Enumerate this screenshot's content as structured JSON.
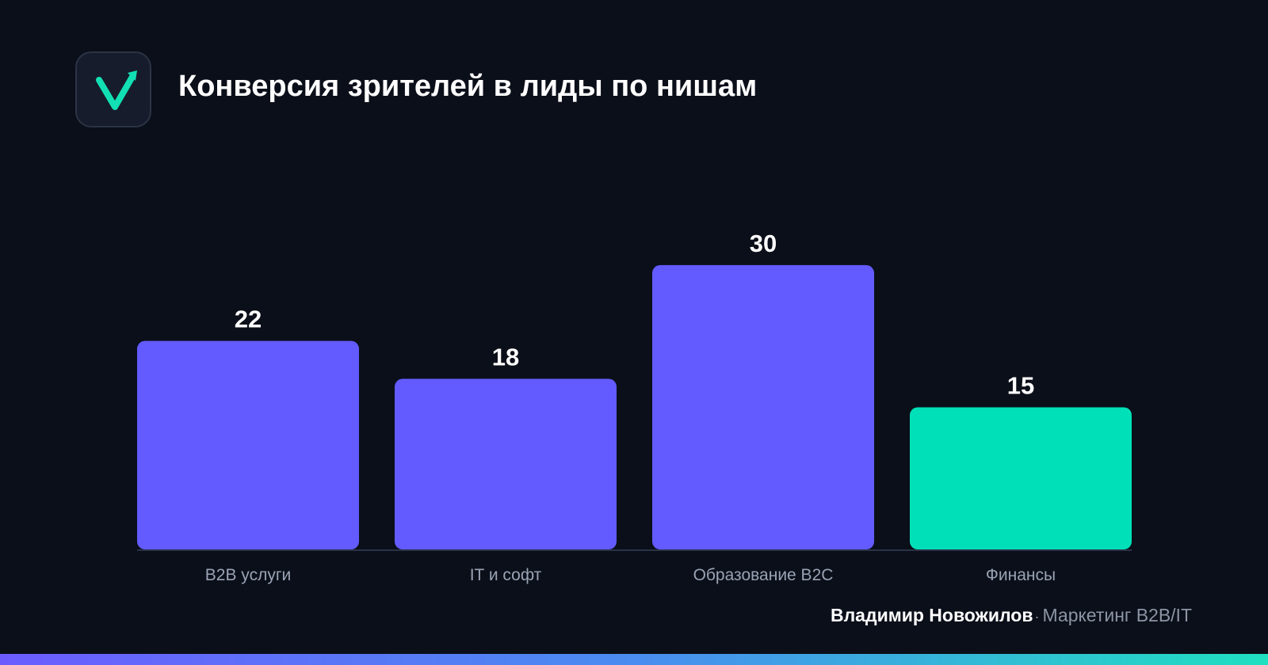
{
  "header": {
    "title": "Конверсия зрителей в лиды по нишам",
    "logo_icon": "checkmark-arrow-icon"
  },
  "chart_data": {
    "type": "bar",
    "title": "Конверсия зрителей в лиды по нишам",
    "categories": [
      "B2B услуги",
      "IT и софт",
      "Образование B2C",
      "Финансы"
    ],
    "values": [
      22,
      18,
      30,
      15
    ],
    "value_labels": [
      "22",
      "18",
      "30",
      "15"
    ],
    "colors": [
      "#635bff",
      "#635bff",
      "#635bff",
      "#00e0b8"
    ],
    "ylim": [
      0,
      30
    ],
    "grid": false,
    "legend": "none",
    "xlabel": "",
    "ylabel": ""
  },
  "footer": {
    "author": "Владимир Новожилов",
    "separator": "·",
    "role": "Маркетинг B2B/IT"
  },
  "colors": {
    "background": "#0b0f19",
    "bar_primary": "#635bff",
    "bar_highlight": "#00e0b8",
    "baseline": "#2a3248"
  }
}
